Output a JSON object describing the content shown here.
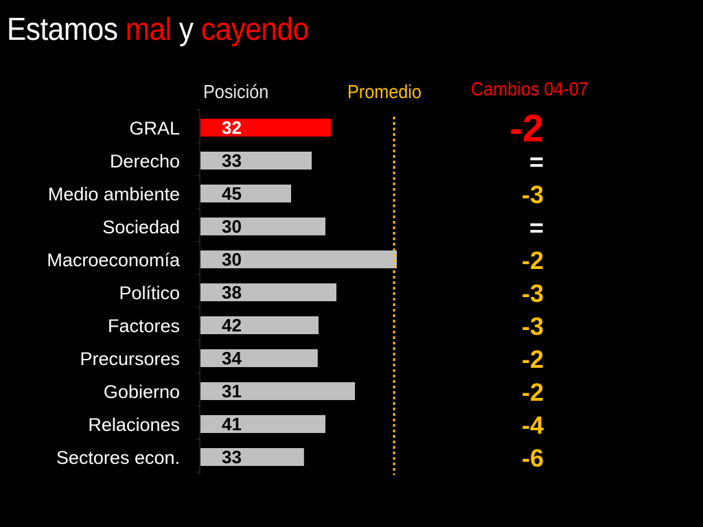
{
  "title": {
    "part1": "Estamos ",
    "part2": "mal",
    "part3": " y ",
    "part4": "cayendo"
  },
  "headers": {
    "position": "Posición",
    "average": "Promedio",
    "changes": "Cambios 04-07"
  },
  "colors": {
    "background": "#000000",
    "highlight_bar": "#ff0000",
    "bar": "#c0c0c0",
    "average_line": "#ffc000",
    "change_text": "#ffc000",
    "highlight_change": "#ff0000",
    "title_accent": "#ff0000"
  },
  "chart_data": {
    "type": "bar",
    "orientation": "horizontal",
    "categories": [
      "GRAL",
      "Derecho",
      "Medio ambiente",
      "Sociedad",
      "Macroeconomía",
      "Político",
      "Factores",
      "Precursores",
      "Gobierno",
      "Relaciones",
      "Sectores econ."
    ],
    "series": [
      {
        "name": "Posición",
        "values": [
          32,
          33,
          45,
          30,
          30,
          38,
          42,
          34,
          31,
          41,
          33
        ]
      }
    ],
    "relative_bar_length": [
      0.475,
      0.405,
      0.33,
      0.455,
      0.715,
      0.495,
      0.43,
      0.427,
      0.5625,
      0.455,
      0.377
    ],
    "average_reference": 0.71,
    "changes": [
      "-2",
      "=",
      "-3",
      "=",
      "-2",
      "-3",
      "-3",
      "-2",
      "-2",
      "-4",
      "-6"
    ],
    "highlight_index": 0,
    "grid": false,
    "legend": "none"
  }
}
